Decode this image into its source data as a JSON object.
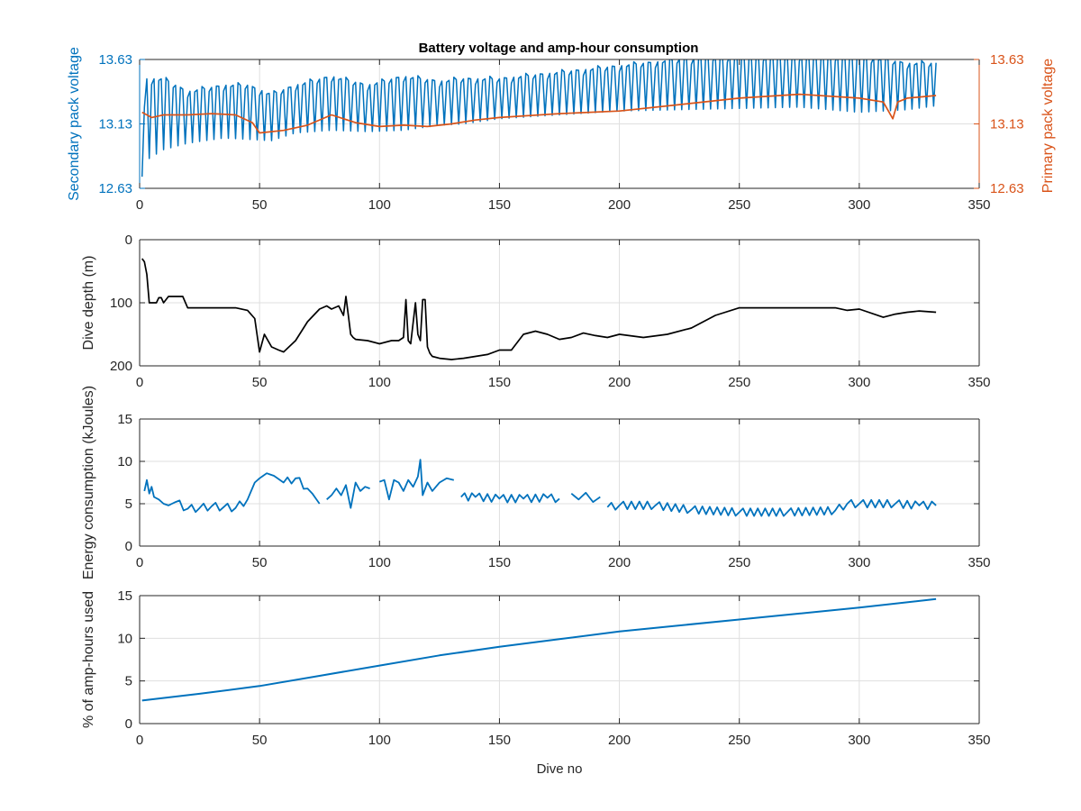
{
  "figure": {
    "title": "Battery voltage and amp-hour consumption"
  },
  "colors": {
    "secondary": "#0072bd",
    "primary": "#d95319",
    "depth": "#000000",
    "axis": "#262626",
    "grid": "#dfdfdf"
  },
  "chart_data": [
    {
      "type": "line",
      "title": "Battery voltage and amp-hour consumption",
      "xlabel": "",
      "ylabel": "Secondary pack voltage",
      "ylabel_right": "Primary pack voltage",
      "xlim": [
        0,
        350
      ],
      "ylim": [
        12.63,
        13.63
      ],
      "ylim_right": [
        12.63,
        13.63
      ],
      "xticks": [
        0,
        50,
        100,
        150,
        200,
        250,
        300,
        350
      ],
      "yticks": [
        12.63,
        13.13,
        13.63
      ],
      "ytick_labels": [
        "12.63",
        "13.13",
        "13.63"
      ],
      "ytick_labels_right": [
        "12.63",
        "13.13",
        "13.63"
      ],
      "grid": true,
      "series": [
        {
          "name": "",
          "axis": "left",
          "color": "#0072bd",
          "oscillating": true,
          "x": [
            1,
            3,
            10,
            20,
            35,
            45,
            55,
            65,
            80,
            95,
            110,
            125,
            135,
            150,
            175,
            200,
            225,
            250,
            275,
            300,
            320,
            332
          ],
          "low": [
            12.72,
            12.85,
            12.93,
            12.98,
            13.02,
            13.01,
            13.0,
            13.06,
            13.08,
            13.07,
            13.08,
            13.12,
            13.13,
            13.17,
            13.2,
            13.23,
            13.24,
            13.25,
            13.26,
            13.22,
            13.24,
            13.27
          ],
          "high": [
            13.05,
            13.5,
            13.5,
            13.4,
            13.45,
            13.45,
            13.38,
            13.45,
            13.52,
            13.45,
            13.52,
            13.48,
            13.5,
            13.5,
            13.55,
            13.6,
            13.65,
            13.68,
            13.68,
            13.68,
            13.62,
            13.62
          ]
        },
        {
          "name": "",
          "axis": "right",
          "color": "#d95319",
          "x": [
            1,
            5,
            10,
            20,
            30,
            40,
            47,
            50,
            60,
            70,
            80,
            90,
            100,
            110,
            120,
            130,
            140,
            150,
            175,
            200,
            225,
            250,
            275,
            300,
            310,
            314,
            316,
            320,
            332
          ],
          "values": [
            13.22,
            13.18,
            13.2,
            13.2,
            13.21,
            13.2,
            13.14,
            13.06,
            13.08,
            13.12,
            13.2,
            13.14,
            13.11,
            13.12,
            13.11,
            13.13,
            13.16,
            13.18,
            13.21,
            13.23,
            13.28,
            13.33,
            13.36,
            13.33,
            13.3,
            13.17,
            13.3,
            13.33,
            13.35
          ]
        }
      ]
    },
    {
      "type": "line",
      "xlabel": "",
      "ylabel": "Dive depth (m)",
      "xlim": [
        0,
        350
      ],
      "ylim": [
        0,
        200
      ],
      "y_reversed": true,
      "xticks": [
        0,
        50,
        100,
        150,
        200,
        250,
        300,
        350
      ],
      "yticks": [
        0,
        100,
        200
      ],
      "grid": true,
      "series": [
        {
          "name": "",
          "color": "#000000",
          "x": [
            1,
            2,
            3,
            4,
            7,
            8,
            9,
            10,
            12,
            15,
            18,
            20,
            25,
            30,
            40,
            45,
            48,
            50,
            52,
            55,
            58,
            60,
            65,
            70,
            75,
            78,
            80,
            83,
            85,
            86,
            87,
            88,
            89,
            90,
            95,
            100,
            105,
            108,
            110,
            111,
            112,
            113,
            115,
            116,
            117,
            118,
            119,
            120,
            121,
            122,
            125,
            130,
            135,
            140,
            145,
            150,
            155,
            160,
            165,
            170,
            175,
            180,
            185,
            190,
            195,
            200,
            210,
            220,
            230,
            240,
            250,
            260,
            275,
            290,
            295,
            300,
            310,
            315,
            320,
            325,
            332
          ],
          "values": [
            30,
            35,
            55,
            100,
            100,
            92,
            92,
            100,
            90,
            90,
            90,
            108,
            108,
            108,
            108,
            112,
            125,
            178,
            150,
            170,
            175,
            178,
            160,
            130,
            110,
            105,
            110,
            105,
            120,
            90,
            120,
            150,
            155,
            158,
            160,
            165,
            160,
            160,
            155,
            95,
            160,
            165,
            100,
            150,
            160,
            95,
            95,
            170,
            180,
            185,
            188,
            190,
            188,
            185,
            182,
            175,
            175,
            150,
            145,
            150,
            158,
            155,
            148,
            152,
            155,
            150,
            155,
            150,
            140,
            120,
            108,
            108,
            108,
            108,
            112,
            110,
            123,
            118,
            115,
            113,
            115
          ]
        }
      ]
    },
    {
      "type": "line",
      "xlabel": "",
      "ylabel": "Energy consumption (kJoules)",
      "xlim": [
        0,
        350
      ],
      "ylim": [
        0,
        15
      ],
      "xticks": [
        0,
        50,
        100,
        150,
        200,
        250,
        300,
        350
      ],
      "yticks": [
        0,
        5,
        10,
        15
      ],
      "grid": true,
      "series": [
        {
          "name": "",
          "color": "#0072bd",
          "segments": [
            {
              "x": [
                2,
                3,
                4,
                5,
                6,
                8,
                10,
                12,
                15,
                20,
                25,
                30,
                35,
                40,
                45,
                48,
                50,
                53,
                56,
                60,
                65,
                70,
                72,
                75
              ],
              "values": [
                6.5,
                7.8,
                6.2,
                7.0,
                5.8,
                5.5,
                5.0,
                4.8,
                5.2,
                4.4,
                4.5,
                4.7,
                4.6,
                4.5,
                5.5,
                7.5,
                8.0,
                8.6,
                8.3,
                7.5,
                8.0,
                6.8,
                6.2,
                5.0
              ]
            },
            {
              "x": [
                78,
                80,
                82,
                84,
                86,
                88,
                90,
                92,
                94,
                96
              ],
              "values": [
                5.5,
                6.0,
                6.8,
                6.0,
                7.2,
                4.5,
                7.5,
                6.5,
                7.0,
                6.8
              ]
            },
            {
              "x": [
                100,
                102,
                104,
                106,
                108,
                110,
                112,
                114,
                116,
                117,
                118,
                120,
                122,
                125,
                128,
                131
              ],
              "values": [
                7.6,
                7.8,
                5.5,
                7.8,
                7.5,
                6.5,
                7.8,
                7.0,
                8.2,
                10.2,
                6.0,
                7.5,
                6.5,
                7.5,
                8.0,
                7.8
              ]
            },
            {
              "x": [
                134,
                140,
                150,
                160,
                170,
                175
              ],
              "values": [
                5.8,
                5.8,
                5.6,
                5.6,
                5.7,
                5.6
              ]
            },
            {
              "x": [
                180,
                183,
                186,
                189,
                192
              ],
              "values": [
                6.2,
                5.5,
                6.3,
                5.2,
                5.8
              ]
            },
            {
              "x": [
                195,
                200,
                215,
                230,
                250,
                270,
                290,
                295,
                300,
                315,
                325,
                332
              ],
              "values": [
                4.6,
                4.8,
                4.8,
                4.3,
                4.0,
                4.0,
                4.2,
                5.0,
                5.0,
                5.0,
                4.8,
                4.8
              ]
            }
          ]
        }
      ]
    },
    {
      "type": "line",
      "xlabel": "Dive no",
      "ylabel": "% of amp-hours used",
      "xlim": [
        0,
        350
      ],
      "ylim": [
        0,
        15
      ],
      "xticks": [
        0,
        50,
        100,
        150,
        200,
        250,
        300,
        350
      ],
      "yticks": [
        0,
        5,
        10,
        15
      ],
      "grid": true,
      "series": [
        {
          "name": "",
          "color": "#0072bd",
          "x": [
            1,
            25,
            50,
            75,
            100,
            125,
            150,
            175,
            200,
            225,
            250,
            275,
            300,
            332
          ],
          "values": [
            2.7,
            3.5,
            4.4,
            5.6,
            6.8,
            8.0,
            9.0,
            9.9,
            10.8,
            11.5,
            12.2,
            12.9,
            13.6,
            14.6
          ]
        }
      ]
    }
  ]
}
